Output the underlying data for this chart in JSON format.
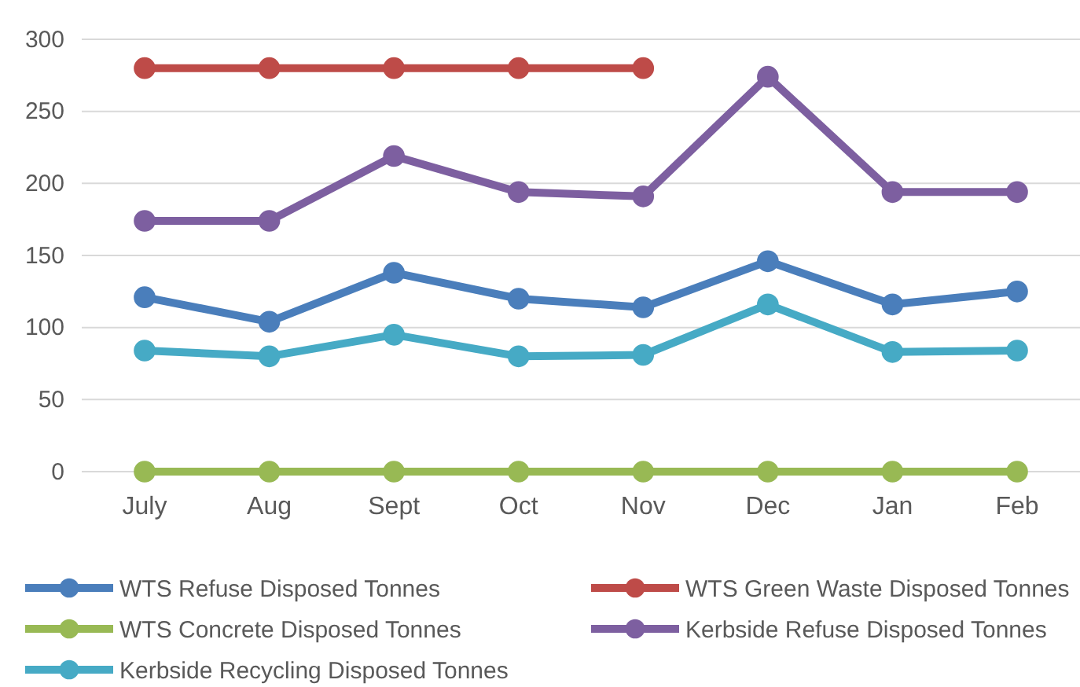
{
  "chart_data": {
    "type": "line",
    "categories": [
      "July",
      "Aug",
      "Sept",
      "Oct",
      "Nov",
      "Dec",
      "Jan",
      "Feb"
    ],
    "series": [
      {
        "name": "WTS Refuse Disposed Tonnes",
        "color": "#4a7ebb",
        "values": [
          121,
          104,
          138,
          120,
          114,
          146,
          116,
          125
        ]
      },
      {
        "name": "WTS Green Waste Disposed Tonnes",
        "color": "#be4b48",
        "values": [
          280,
          280,
          280,
          280,
          280,
          null,
          null,
          null
        ]
      },
      {
        "name": "WTS Concrete Disposed Tonnes",
        "color": "#98b954",
        "values": [
          0,
          0,
          0,
          0,
          0,
          0,
          0,
          0
        ]
      },
      {
        "name": "Kerbside Refuse Disposed Tonnes",
        "color": "#7d5fa0",
        "values": [
          174,
          174,
          219,
          194,
          191,
          274,
          194,
          194
        ]
      },
      {
        "name": "Kerbside Recycling Disposed Tonnes",
        "color": "#46aac5",
        "values": [
          84,
          80,
          95,
          80,
          81,
          116,
          83,
          84
        ]
      }
    ],
    "ylim": [
      0,
      300
    ],
    "yticks": [
      0,
      50,
      100,
      150,
      200,
      250,
      300
    ],
    "grid": "y",
    "legend": "bottom",
    "marker": "circle",
    "line_style": "solid"
  }
}
